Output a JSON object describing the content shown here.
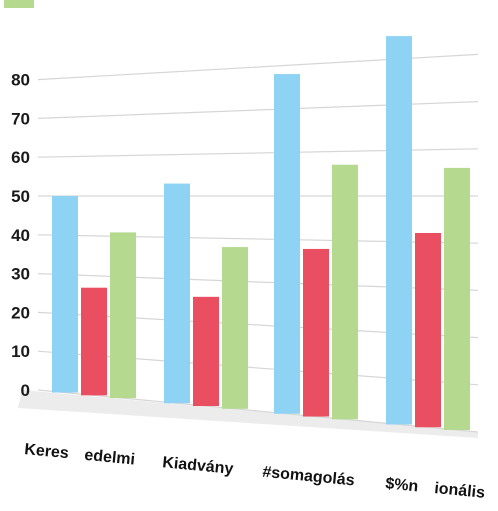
{
  "chart_data": {
    "type": "bar",
    "title": "",
    "xlabel": "",
    "ylabel": "",
    "ylim": [
      0,
      80
    ],
    "yticks": [
      0,
      10,
      20,
      30,
      40,
      50,
      60,
      70,
      80
    ],
    "grid": true,
    "legend_position": "top-left",
    "categories": [
      "Keres edelmi",
      "Kiadvány",
      "#somagolás",
      "$%n ionális"
    ],
    "series": [
      {
        "color": "#8fd3f4",
        "values": [
          50,
          53,
          78,
          85
        ]
      },
      {
        "color": "#e94f60",
        "values": [
          27,
          26,
          38,
          42
        ]
      },
      {
        "color": "#b5d98f",
        "values": [
          41,
          38,
          57,
          56
        ]
      }
    ]
  }
}
